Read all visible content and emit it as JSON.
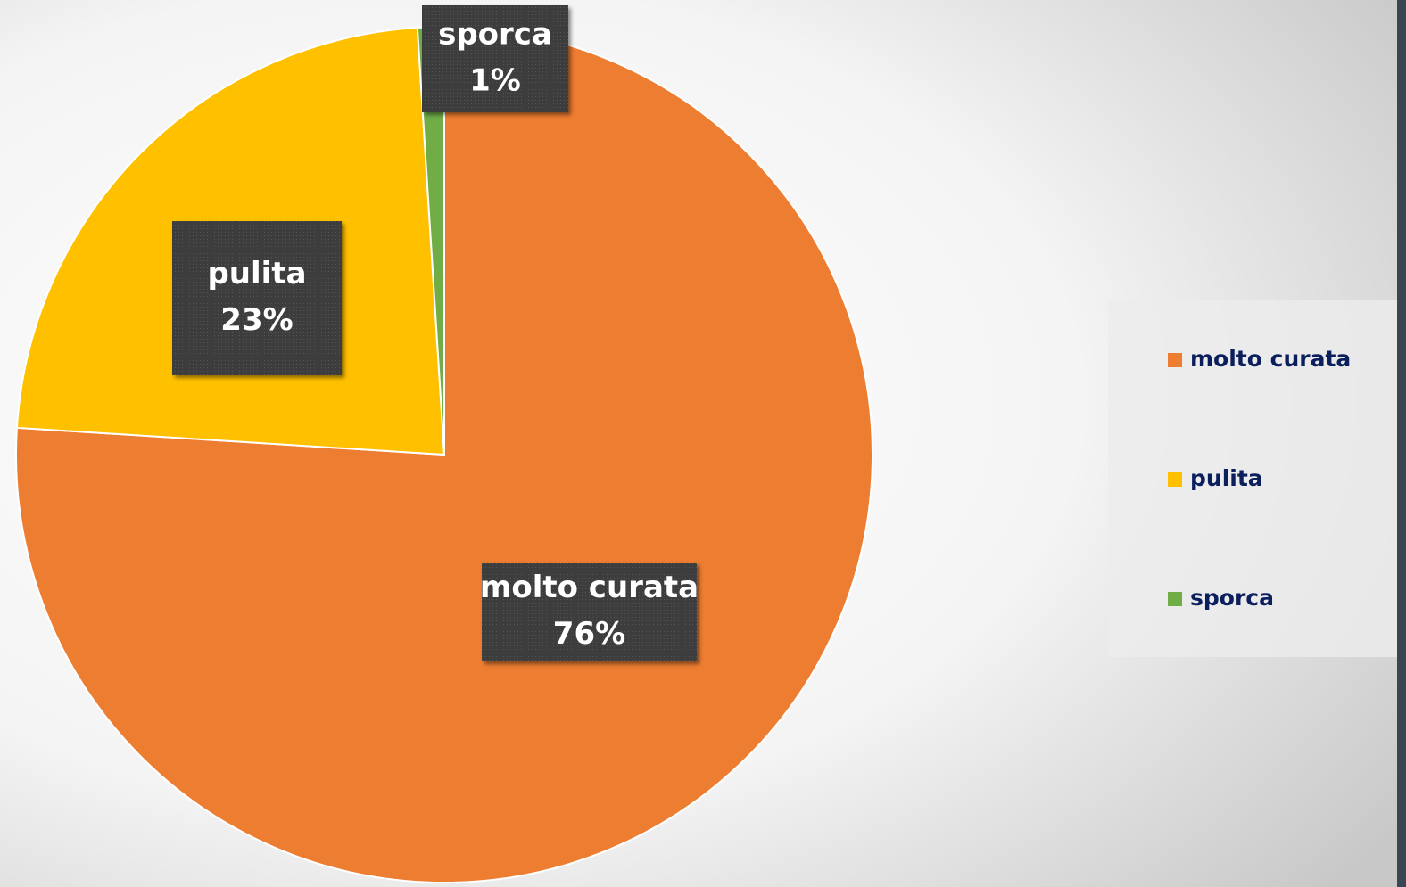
{
  "chart_data": {
    "type": "pie",
    "categories": [
      "molto curata",
      "pulita",
      "sporca"
    ],
    "values": [
      76,
      23,
      1
    ],
    "value_labels": [
      "76%",
      "23%",
      "1%"
    ],
    "colors": [
      "#ED7D31",
      "#FFC000",
      "#70AD47"
    ],
    "legend": "right"
  }
}
